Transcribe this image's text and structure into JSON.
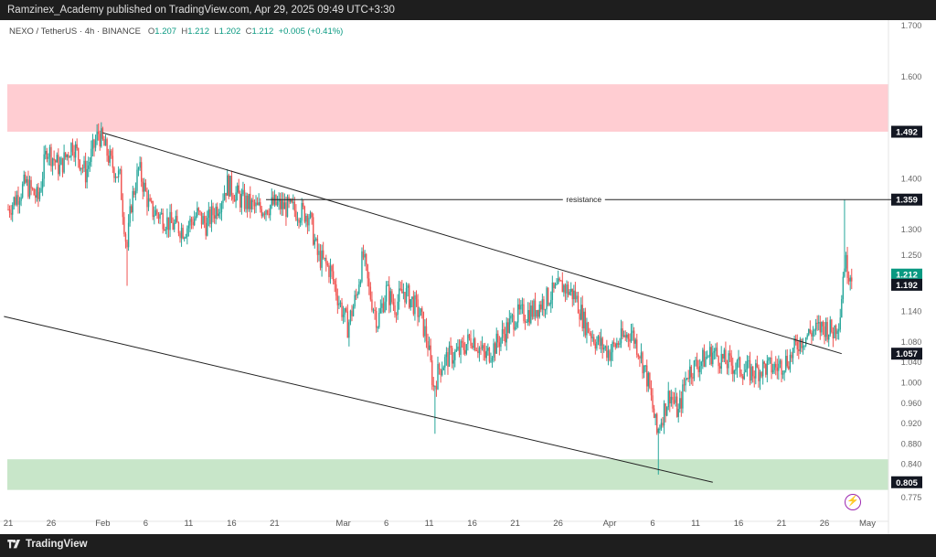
{
  "header": {
    "text": "Ramzinex_Academy published on TradingView.com, Apr 29, 2025 09:49 UTC+3:30"
  },
  "legend": {
    "symbol": "NEXO / TetherUS · 4h · BINANCE",
    "o_label": "O",
    "o": "1.207",
    "h_label": "H",
    "h": "1.212",
    "l_label": "L",
    "l": "1.202",
    "c_label": "C",
    "c": "1.212",
    "change": "+0.005 (+0.41%)"
  },
  "footer": {
    "brand": "TradingView"
  },
  "colors": {
    "up": "#26a69a",
    "down": "#ef5350",
    "supply_zone": "#ffcdd2",
    "demand_zone": "#c8e6c9",
    "price_tag_dark": "#131722",
    "price_tag_green": "#089981"
  },
  "chart_data": {
    "type": "candlestick",
    "symbol": "NEXO / TetherUS",
    "timeframe": "4h",
    "exchange": "BINANCE",
    "ylim": [
      0.76,
      1.72
    ],
    "y_ticks": [
      0.775,
      0.805,
      0.84,
      0.88,
      0.92,
      0.96,
      1.0,
      1.04,
      1.057,
      1.08,
      1.14,
      1.192,
      1.212,
      1.25,
      1.3,
      1.359,
      1.4,
      1.492,
      1.6,
      1.7
    ],
    "y_tick_labels": [
      "0.775",
      "0.805",
      "0.840",
      "0.880",
      "0.920",
      "0.960",
      "1.000",
      "1.040",
      "1.057",
      "1.080",
      "1.140",
      "1.192",
      "1.212",
      "1.250",
      "1.300",
      "1.359",
      "1.400",
      "1.492",
      "1.600",
      "1.700"
    ],
    "x_ticks": [
      {
        "label": "21",
        "day": 0
      },
      {
        "label": "26",
        "day": 5
      },
      {
        "label": "Feb",
        "day": 11
      },
      {
        "label": "6",
        "day": 16
      },
      {
        "label": "11",
        "day": 21
      },
      {
        "label": "16",
        "day": 26
      },
      {
        "label": "21",
        "day": 31
      },
      {
        "label": "Mar",
        "day": 39
      },
      {
        "label": "6",
        "day": 44
      },
      {
        "label": "11",
        "day": 49
      },
      {
        "label": "16",
        "day": 54
      },
      {
        "label": "21",
        "day": 59
      },
      {
        "label": "26",
        "day": 64
      },
      {
        "label": "Apr",
        "day": 70
      },
      {
        "label": "6",
        "day": 75
      },
      {
        "label": "11",
        "day": 80
      },
      {
        "label": "16",
        "day": 85
      },
      {
        "label": "21",
        "day": 90
      },
      {
        "label": "26",
        "day": 95
      },
      {
        "label": "May",
        "day": 100
      }
    ],
    "closes": [
      {
        "day": 0,
        "close": 1.34
      },
      {
        "day": 2,
        "close": 1.39
      },
      {
        "day": 3.5,
        "close": 1.36
      },
      {
        "day": 4.5,
        "close": 1.46
      },
      {
        "day": 6,
        "close": 1.42
      },
      {
        "day": 7.5,
        "close": 1.47
      },
      {
        "day": 9,
        "close": 1.41
      },
      {
        "day": 10.5,
        "close": 1.49
      },
      {
        "day": 12,
        "close": 1.43
      },
      {
        "day": 13,
        "close": 1.4
      },
      {
        "day": 13.8,
        "close": 1.26
      },
      {
        "day": 14.3,
        "close": 1.35
      },
      {
        "day": 15.2,
        "close": 1.42
      },
      {
        "day": 16.5,
        "close": 1.34
      },
      {
        "day": 17.5,
        "close": 1.33
      },
      {
        "day": 19,
        "close": 1.31
      },
      {
        "day": 20.5,
        "close": 1.3
      },
      {
        "day": 22,
        "close": 1.33
      },
      {
        "day": 23,
        "close": 1.31
      },
      {
        "day": 24.5,
        "close": 1.35
      },
      {
        "day": 25.5,
        "close": 1.39
      },
      {
        "day": 27,
        "close": 1.36
      },
      {
        "day": 29,
        "close": 1.34
      },
      {
        "day": 31,
        "close": 1.35
      },
      {
        "day": 33,
        "close": 1.34
      },
      {
        "day": 35,
        "close": 1.33
      },
      {
        "day": 36,
        "close": 1.25
      },
      {
        "day": 37.5,
        "close": 1.22
      },
      {
        "day": 38.5,
        "close": 1.16
      },
      {
        "day": 39.5,
        "close": 1.11
      },
      {
        "day": 40.5,
        "close": 1.17
      },
      {
        "day": 41.3,
        "close": 1.25
      },
      {
        "day": 42,
        "close": 1.18
      },
      {
        "day": 43,
        "close": 1.12
      },
      {
        "day": 44,
        "close": 1.18
      },
      {
        "day": 45,
        "close": 1.15
      },
      {
        "day": 46,
        "close": 1.18
      },
      {
        "day": 47,
        "close": 1.16
      },
      {
        "day": 48,
        "close": 1.13
      },
      {
        "day": 48.8,
        "close": 1.08
      },
      {
        "day": 49.5,
        "close": 0.99
      },
      {
        "day": 50.2,
        "close": 1.03
      },
      {
        "day": 51.2,
        "close": 1.05
      },
      {
        "day": 52.5,
        "close": 1.06
      },
      {
        "day": 54,
        "close": 1.09
      },
      {
        "day": 55.5,
        "close": 1.05
      },
      {
        "day": 57,
        "close": 1.08
      },
      {
        "day": 59,
        "close": 1.13
      },
      {
        "day": 61,
        "close": 1.14
      },
      {
        "day": 63,
        "close": 1.17
      },
      {
        "day": 64.5,
        "close": 1.19
      },
      {
        "day": 66,
        "close": 1.17
      },
      {
        "day": 67,
        "close": 1.12
      },
      {
        "day": 68.5,
        "close": 1.08
      },
      {
        "day": 70,
        "close": 1.06
      },
      {
        "day": 71,
        "close": 1.08
      },
      {
        "day": 72.5,
        "close": 1.1
      },
      {
        "day": 73.5,
        "close": 1.06
      },
      {
        "day": 74.5,
        "close": 1.0
      },
      {
        "day": 75.5,
        "close": 0.9
      },
      {
        "day": 76,
        "close": 0.93
      },
      {
        "day": 77,
        "close": 0.98
      },
      {
        "day": 78,
        "close": 0.94
      },
      {
        "day": 79,
        "close": 1.02
      },
      {
        "day": 80.5,
        "close": 1.04
      },
      {
        "day": 82,
        "close": 1.06
      },
      {
        "day": 83.5,
        "close": 1.04
      },
      {
        "day": 85,
        "close": 1.03
      },
      {
        "day": 86.5,
        "close": 1.02
      },
      {
        "day": 88,
        "close": 1.03
      },
      {
        "day": 89.5,
        "close": 1.03
      },
      {
        "day": 91,
        "close": 1.05
      },
      {
        "day": 92,
        "close": 1.08
      },
      {
        "day": 93.5,
        "close": 1.1
      },
      {
        "day": 95,
        "close": 1.11
      },
      {
        "day": 96,
        "close": 1.1
      },
      {
        "day": 96.8,
        "close": 1.13
      },
      {
        "day": 97.3,
        "close": 1.24
      },
      {
        "day": 97.8,
        "close": 1.22
      },
      {
        "day": 98.3,
        "close": 1.212
      }
    ],
    "wick_extremes": [
      {
        "day": 10.5,
        "price": 1.492
      },
      {
        "day": 13.8,
        "price": 1.19
      },
      {
        "day": 49.7,
        "price": 0.9
      },
      {
        "day": 75.6,
        "price": 0.82
      },
      {
        "day": 97.3,
        "price": 1.359
      }
    ],
    "zones": [
      {
        "name": "supply",
        "from": 1.492,
        "to": 1.585
      },
      {
        "name": "demand",
        "from": 0.79,
        "to": 0.85
      }
    ],
    "lines": [
      {
        "name": "upper-channel",
        "from": {
          "day": 11,
          "price": 1.49
        },
        "to": {
          "day": 97,
          "price": 1.057
        }
      },
      {
        "name": "lower-channel",
        "from": {
          "day": -0.5,
          "price": 1.13
        },
        "to": {
          "day": 82,
          "price": 0.805
        }
      },
      {
        "name": "resistance",
        "from": {
          "day": 30,
          "price": 1.359
        },
        "to": {
          "day": 103,
          "price": 1.359
        }
      }
    ],
    "annotations": [
      {
        "text": "resistance",
        "day": 67,
        "price": 1.359
      }
    ],
    "price_tags": [
      {
        "value": "1.492",
        "price": 1.492,
        "style": "dark"
      },
      {
        "value": "1.359",
        "price": 1.359,
        "style": "dark"
      },
      {
        "value": "1.212",
        "price": 1.212,
        "style": "green"
      },
      {
        "value": "1.192",
        "price": 1.192,
        "style": "dark"
      },
      {
        "value": "1.057",
        "price": 1.057,
        "style": "dark"
      },
      {
        "value": "0.805",
        "price": 0.805,
        "style": "dark"
      }
    ]
  }
}
